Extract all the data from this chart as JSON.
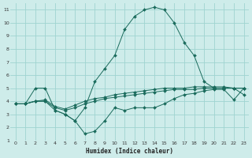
{
  "xlabel": "Humidex (Indice chaleur)",
  "bg_color": "#ceecea",
  "grid_color": "#9fd4d0",
  "line_color": "#1a6b5c",
  "xlim": [
    -0.5,
    23.5
  ],
  "ylim": [
    1,
    11.5
  ],
  "xticks": [
    0,
    1,
    2,
    3,
    4,
    5,
    6,
    7,
    8,
    9,
    10,
    11,
    12,
    13,
    14,
    15,
    16,
    17,
    18,
    19,
    20,
    21,
    22,
    23
  ],
  "yticks": [
    1,
    2,
    3,
    4,
    5,
    6,
    7,
    8,
    9,
    10,
    11
  ],
  "series": [
    {
      "x": [
        0,
        1,
        2,
        3,
        4,
        5,
        6,
        7,
        8,
        9,
        10,
        11,
        12,
        13,
        14,
        15,
        16,
        17,
        18,
        19,
        20,
        21,
        22,
        23
      ],
      "y": [
        3.8,
        3.8,
        4.0,
        4.0,
        3.3,
        3.0,
        2.5,
        1.5,
        1.7,
        2.5,
        3.5,
        3.3,
        3.5,
        3.5,
        3.5,
        3.8,
        4.2,
        4.5,
        4.6,
        4.8,
        4.9,
        4.9,
        4.1,
        5.0
      ]
    },
    {
      "x": [
        0,
        1,
        2,
        3,
        4,
        5,
        6,
        7,
        8,
        9,
        10,
        11,
        12,
        13,
        14,
        15,
        16,
        17,
        18,
        19,
        20,
        21,
        22,
        23
      ],
      "y": [
        3.8,
        3.8,
        5.0,
        5.0,
        3.3,
        3.0,
        2.5,
        3.5,
        5.5,
        6.5,
        7.5,
        9.5,
        10.5,
        11.0,
        11.2,
        11.0,
        10.0,
        8.5,
        7.5,
        5.5,
        5.0,
        5.0,
        5.0,
        4.5
      ]
    },
    {
      "x": [
        0,
        1,
        2,
        3,
        4,
        5,
        6,
        7,
        8,
        9,
        10,
        11,
        12,
        13,
        14,
        15,
        16,
        17,
        18,
        19,
        20,
        21,
        22,
        23
      ],
      "y": [
        3.8,
        3.8,
        4.0,
        4.0,
        3.5,
        3.3,
        3.5,
        3.8,
        4.0,
        4.2,
        4.3,
        4.4,
        4.5,
        4.6,
        4.7,
        4.8,
        4.9,
        4.9,
        4.9,
        5.0,
        5.0,
        5.0,
        5.0,
        5.0
      ]
    },
    {
      "x": [
        0,
        1,
        2,
        3,
        4,
        5,
        6,
        7,
        8,
        9,
        10,
        11,
        12,
        13,
        14,
        15,
        16,
        17,
        18,
        19,
        20,
        21,
        22,
        23
      ],
      "y": [
        3.8,
        3.8,
        4.0,
        4.1,
        3.6,
        3.4,
        3.7,
        4.0,
        4.2,
        4.3,
        4.5,
        4.6,
        4.7,
        4.8,
        4.9,
        5.0,
        5.0,
        5.0,
        5.1,
        5.1,
        5.1,
        5.1,
        5.0,
        5.0
      ]
    }
  ]
}
